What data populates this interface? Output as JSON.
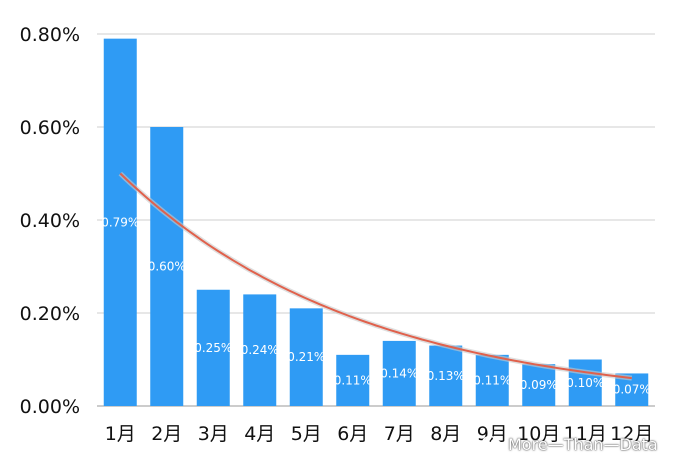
{
  "chart_data": {
    "type": "bar",
    "categories": [
      "1月",
      "2月",
      "3月",
      "4月",
      "5月",
      "6月",
      "7月",
      "8月",
      "9月",
      "10月",
      "11月",
      "12月"
    ],
    "values": [
      0.79,
      0.6,
      0.25,
      0.24,
      0.21,
      0.11,
      0.14,
      0.13,
      0.11,
      0.09,
      0.1,
      0.07
    ],
    "data_labels": [
      "0.79%",
      "0.60%",
      "0.25%",
      "0.24%",
      "0.21%",
      "0.11%",
      "0.14%",
      "0.13%",
      "0.11%",
      "0.09%",
      "0.10%",
      "0.07%"
    ],
    "ylim": [
      0,
      0.8
    ],
    "yticks": [
      0,
      0.2,
      0.4,
      0.6,
      0.8
    ],
    "ytick_labels": [
      "0.00%",
      "0.20%",
      "0.40%",
      "0.60%",
      "0.80%"
    ],
    "trendline": {
      "type": "exponential",
      "start": 0.5,
      "end": 0.06
    },
    "grid": true,
    "bar_color": "#2f9bf4",
    "trend_color": "#e0614c"
  },
  "watermark": {
    "text": "More—Than—Data",
    "icon": "wechat-icon"
  }
}
